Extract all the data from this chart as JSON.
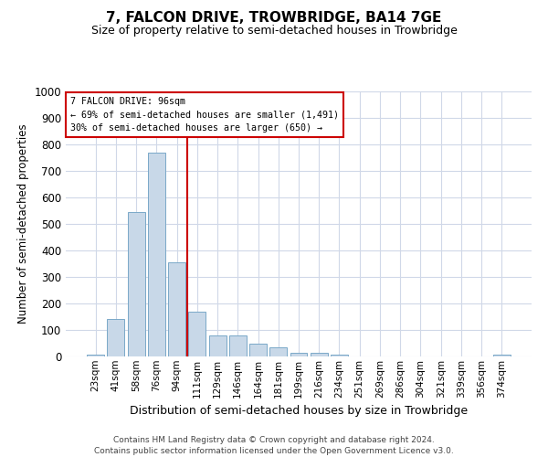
{
  "title": "7, FALCON DRIVE, TROWBRIDGE, BA14 7GE",
  "subtitle": "Size of property relative to semi-detached houses in Trowbridge",
  "xlabel": "Distribution of semi-detached houses by size in Trowbridge",
  "ylabel": "Number of semi-detached properties",
  "bar_color": "#c8d8e8",
  "bar_edge_color": "#7aa8c8",
  "categories": [
    "23sqm",
    "41sqm",
    "58sqm",
    "76sqm",
    "94sqm",
    "111sqm",
    "129sqm",
    "146sqm",
    "164sqm",
    "181sqm",
    "199sqm",
    "216sqm",
    "234sqm",
    "251sqm",
    "269sqm",
    "286sqm",
    "304sqm",
    "321sqm",
    "339sqm",
    "356sqm",
    "374sqm"
  ],
  "values": [
    8,
    140,
    545,
    770,
    355,
    170,
    80,
    80,
    50,
    35,
    15,
    15,
    8,
    0,
    0,
    0,
    0,
    0,
    0,
    0,
    8
  ],
  "ylim": [
    0,
    1000
  ],
  "yticks": [
    0,
    100,
    200,
    300,
    400,
    500,
    600,
    700,
    800,
    900,
    1000
  ],
  "red_line_x": 4.5,
  "annotation_line1": "7 FALCON DRIVE: 96sqm",
  "annotation_line2": "← 69% of semi-detached houses are smaller (1,491)",
  "annotation_line3": "30% of semi-detached houses are larger (650) →",
  "red_line_color": "#cc0000",
  "annotation_box_color": "#ffffff",
  "annotation_box_edge": "#cc0000",
  "footer_line1": "Contains HM Land Registry data © Crown copyright and database right 2024.",
  "footer_line2": "Contains public sector information licensed under the Open Government Licence v3.0.",
  "background_color": "#ffffff",
  "grid_color": "#d0d8e8"
}
